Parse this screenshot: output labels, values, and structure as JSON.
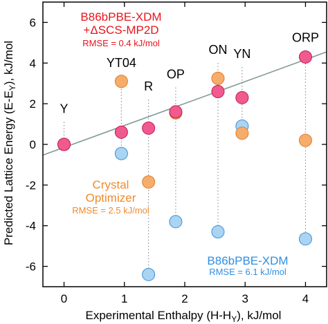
{
  "colors": {
    "pink_fill": "#f05a8e",
    "pink_stroke": "#c2185b",
    "orange_fill": "#f6ad6b",
    "orange_stroke": "#e07b2a",
    "blue_fill": "#a9d4f2",
    "blue_stroke": "#3c8fd6",
    "red_text": "#e8141c",
    "orange_text": "#f08a2c",
    "blue_text": "#2f8fe0",
    "fit_line": "#7f9a96",
    "dotted": "#888888"
  },
  "chart_data": {
    "type": "scatter",
    "xlabel": "Experimental Enthalpy (H-H",
    "xlabel_sub": "Y",
    "xlabel_tail": "), kJ/mol",
    "ylabel": "Predicted Lattice Energy (E-E",
    "ylabel_sub": "Y",
    "ylabel_tail": "), kJ/mol",
    "xlim": [
      -0.35,
      4.35
    ],
    "ylim": [
      -7.0,
      7.0
    ],
    "xticks": [
      0,
      1,
      2,
      3,
      4
    ],
    "xtick_labels": [
      "0",
      "1",
      "2",
      "3",
      "4"
    ],
    "yticks": [
      -6,
      -4,
      -2,
      0,
      2,
      4,
      6
    ],
    "ytick_labels": [
      "-6",
      "-4",
      "-2",
      "0",
      "2",
      "4",
      "6"
    ],
    "grid": false,
    "categories": [
      {
        "label": "Y",
        "x": 0.0,
        "label_y": 1.55
      },
      {
        "label": "YT04",
        "x": 0.95,
        "label_y": 3.8
      },
      {
        "label": "R",
        "x": 1.4,
        "label_y": 2.65
      },
      {
        "label": "OP",
        "x": 1.85,
        "label_y": 3.25
      },
      {
        "label": "ON",
        "x": 2.55,
        "label_y": 4.45
      },
      {
        "label": "YN",
        "x": 2.95,
        "label_y": 4.25
      },
      {
        "label": "ORP",
        "x": 4.0,
        "label_y": 5.05
      }
    ],
    "fit_line": {
      "slope": 1.08,
      "intercept": -0.15
    },
    "series": [
      {
        "name": "B86bPBE-XDM +ΔSCS-MP2D",
        "rmse": "RMSE = 0.4 kJ/mol",
        "x": [
          0.0,
          0.95,
          1.4,
          1.85,
          2.55,
          2.95,
          4.0
        ],
        "y": [
          0.0,
          0.6,
          0.8,
          1.6,
          2.6,
          2.3,
          4.3
        ]
      },
      {
        "name": "Crystal Optimizer",
        "rmse": "RMSE = 2.5 kJ/mol",
        "x": [
          0.0,
          0.95,
          1.4,
          1.85,
          2.55,
          2.95,
          4.0
        ],
        "y": [
          0.0,
          3.1,
          -1.85,
          1.55,
          3.25,
          0.55,
          0.2
        ]
      },
      {
        "name": "B86bPBE-XDM",
        "rmse": "RMSE = 6.1 kJ/mol",
        "x": [
          0.0,
          0.95,
          1.4,
          1.85,
          2.55,
          2.95,
          4.0
        ],
        "y": [
          0.0,
          -0.45,
          -6.4,
          -3.8,
          -4.3,
          0.9,
          -4.65
        ]
      }
    ],
    "annotations": {
      "pink_line1": "B86bPBE-XDM",
      "pink_line2": "+ΔSCS-MP2D",
      "pink_rmse": "RMSE = 0.4 kJ/mol",
      "orange_line1": "Crystal",
      "orange_line2": "Optimizer",
      "orange_rmse": "RMSE = 2.5 kJ/mol",
      "blue_line1": "B86bPBE-XDM",
      "blue_rmse": "RMSE = 6.1 kJ/mol"
    }
  }
}
